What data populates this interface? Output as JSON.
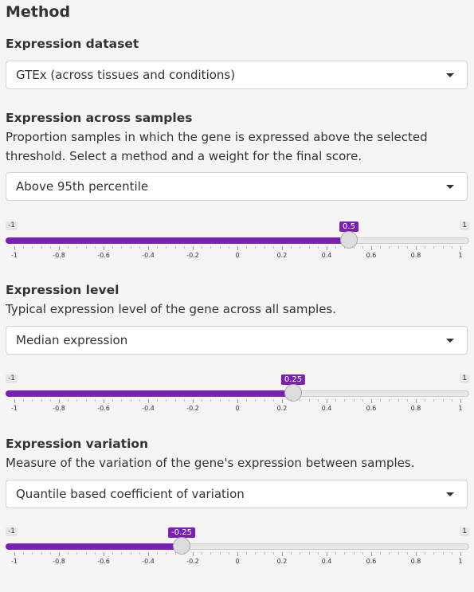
{
  "page_title": "Method",
  "dataset": {
    "title": "Expression dataset",
    "selected": "GTEx (across tissues and conditions)"
  },
  "samples": {
    "title": "Expression across samples",
    "description": "Proportion samples in which the gene is expressed above the selected threshold. Select a method and a weight for the final score.",
    "selected": "Above 95th percentile",
    "slider": {
      "min": -1,
      "max": 1,
      "value": 0.5,
      "min_label": "-1",
      "max_label": "1",
      "value_label": "0.5"
    }
  },
  "level": {
    "title": "Expression level",
    "description": "Typical expression level of the gene across all samples.",
    "selected": "Median expression",
    "slider": {
      "min": -1,
      "max": 1,
      "value": 0.25,
      "min_label": "-1",
      "max_label": "1",
      "value_label": "0.25"
    }
  },
  "variation": {
    "title": "Expression variation",
    "description": "Measure of the variation of the gene's expression between samples.",
    "selected": "Quantile based coefficient of variation",
    "slider": {
      "min": -1,
      "max": 1,
      "value": -0.25,
      "min_label": "-1",
      "max_label": "1",
      "value_label": "-0.25"
    }
  },
  "tick_labels": [
    "-1",
    "-0.8",
    "-0.6",
    "-0.4",
    "-0.2",
    "0",
    "0.2",
    "0.4",
    "0.6",
    "0.8",
    "1"
  ],
  "colors": {
    "accent": "#7a1fb5",
    "background": "#f5f5f5"
  }
}
